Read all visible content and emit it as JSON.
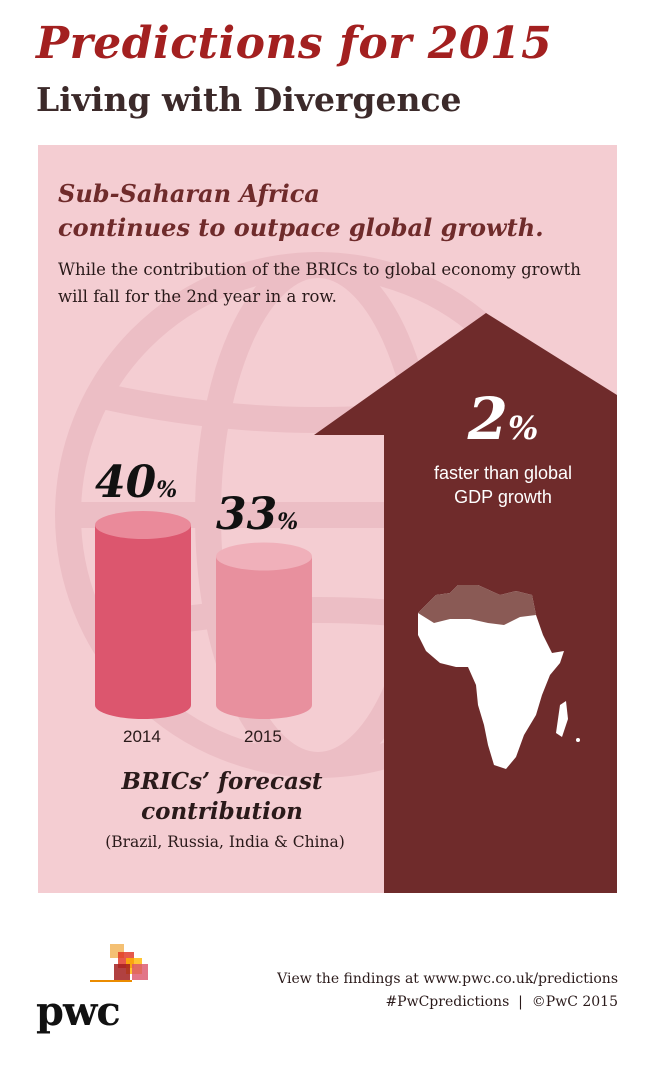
{
  "header": {
    "title": "Predictions for 2015",
    "subtitle": "Living with Divergence"
  },
  "panel": {
    "headline_line1": "Sub-Saharan Africa",
    "headline_line2": "continues to outpace global growth.",
    "intro": "While the contribution of the BRICs to global economy growth will fall for the 2nd year in a row."
  },
  "chart_data": {
    "type": "bar",
    "categories": [
      "2014",
      "2015"
    ],
    "values": [
      40,
      33
    ],
    "unit": "%",
    "value_labels": [
      "40",
      "33"
    ],
    "ylabel": "BRICs' forecast contribution",
    "ylabel_line1": "BRICs’ forecast",
    "ylabel_line2": "contribution",
    "ylabel_note": "(Brazil, Russia, India & China)",
    "colors": [
      "#dc566e",
      "#e8909e"
    ]
  },
  "africa_stat": {
    "value": "2",
    "unit": "%",
    "description_line1": "faster than global",
    "description_line2": "GDP growth",
    "arrow_color": "#6f2b2b"
  },
  "brand": {
    "logo_text": "pwc",
    "accent_colors": [
      "#a32020",
      "#e0301e",
      "#eb8c00",
      "#ffb600",
      "#db536a"
    ]
  },
  "footer": {
    "line1": "View the findings at www.pwc.co.uk/predictions",
    "hashtag": "#PwCpredictions",
    "separator": "|",
    "copyright": "©PwC 2015"
  }
}
